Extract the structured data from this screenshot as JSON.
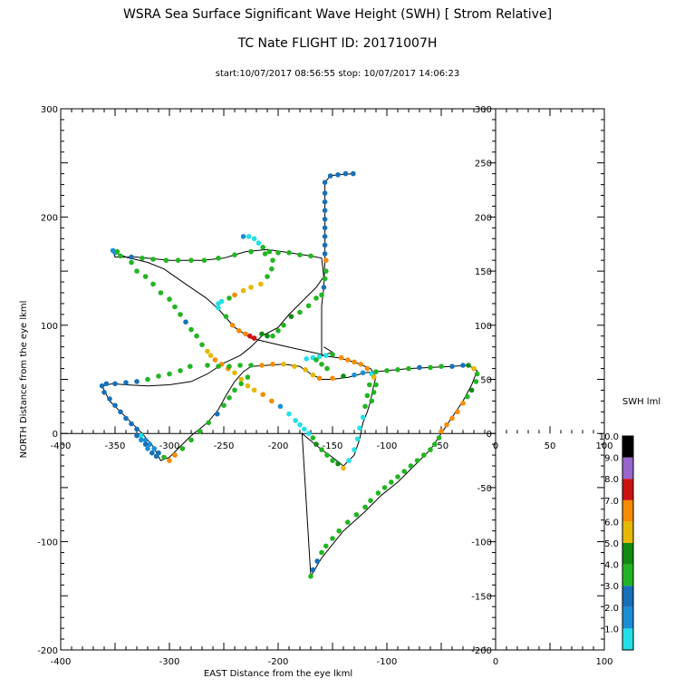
{
  "chart_data": {
    "type": "scatter",
    "title": "WSRA Sea Surface Significant Wave Height (SWH) [ Strom Relative]",
    "subtitle": "TC Nate  FLIGHT ID: 20171007H",
    "time_range": "start:10/07/2017 08:56:55 stop: 10/07/2017 14:06:23",
    "xlabel": "EAST Distance from the eye lkml",
    "ylabel": "NORTH Distance from the eye lkml",
    "xlim": [
      -400,
      100
    ],
    "ylim": [
      -200,
      300
    ],
    "x_ticks": [
      "-400",
      "-300",
      "-200",
      "-100",
      "0",
      "100"
    ],
    "x_ticks_axis": [
      "-400",
      "-350",
      "-300",
      "-250",
      "-200",
      "-150",
      "-100",
      "-50",
      "0",
      "50",
      "100"
    ],
    "y_ticks": [
      "-200",
      "-100",
      "0",
      "100",
      "200",
      "300"
    ],
    "y_ticks_inner": [
      "-200",
      "-150",
      "-100",
      "-50",
      "0",
      "50",
      "100",
      "150",
      "200",
      "250",
      "300"
    ],
    "colorbar": {
      "label": "SWH lml",
      "ticks": [
        "1.0",
        "2.0",
        "3.0",
        "4.0",
        "5.0",
        "6.0",
        "7.0",
        "8.0",
        "9.0",
        "10.0"
      ],
      "segments": [
        {
          "from": 0,
          "to": 1,
          "color": "#22e0e6"
        },
        {
          "from": 1,
          "to": 2,
          "color": "#1a8fd6"
        },
        {
          "from": 2,
          "to": 3,
          "color": "#1670b8"
        },
        {
          "from": 3,
          "to": 4,
          "color": "#22b522"
        },
        {
          "from": 4,
          "to": 5,
          "color": "#128a12"
        },
        {
          "from": 5,
          "to": 6,
          "color": "#e6b800"
        },
        {
          "from": 6,
          "to": 7,
          "color": "#f58c00"
        },
        {
          "from": 7,
          "to": 8,
          "color": "#cc1111"
        },
        {
          "from": 8,
          "to": 9,
          "color": "#9966cc"
        },
        {
          "from": 9,
          "to": 10,
          "color": "#000000"
        }
      ]
    },
    "track": [
      [
        -131,
        240
      ],
      [
        -145,
        239
      ],
      [
        -152,
        238
      ],
      [
        -157,
        232
      ],
      [
        -157,
        210
      ],
      [
        -157,
        185
      ],
      [
        -157,
        162
      ],
      [
        -158,
        135
      ],
      [
        -160,
        118
      ],
      [
        -160,
        102
      ],
      [
        -160,
        80
      ],
      [
        -160,
        73
      ],
      [
        -200,
        82
      ],
      [
        -225,
        88
      ],
      [
        -240,
        98
      ],
      [
        -255,
        115
      ],
      [
        -266,
        125
      ],
      [
        -285,
        138
      ],
      [
        -305,
        152
      ],
      [
        -320,
        158
      ],
      [
        -340,
        163
      ],
      [
        -352,
        168
      ],
      [
        -350,
        163
      ],
      [
        -330,
        163
      ],
      [
        -300,
        160
      ],
      [
        -270,
        160
      ],
      [
        -250,
        162
      ],
      [
        -230,
        168
      ],
      [
        -210,
        170
      ],
      [
        -190,
        167
      ],
      [
        -170,
        164
      ],
      [
        -160,
        162
      ],
      [
        -158,
        145
      ],
      [
        -165,
        135
      ],
      [
        -175,
        125
      ],
      [
        -190,
        110
      ],
      [
        -200,
        98
      ],
      [
        -215,
        90
      ],
      [
        -225,
        80
      ],
      [
        -235,
        72
      ],
      [
        -250,
        65
      ],
      [
        -265,
        55
      ],
      [
        -280,
        48
      ],
      [
        -300,
        45
      ],
      [
        -320,
        44
      ],
      [
        -340,
        45
      ],
      [
        -352,
        46
      ],
      [
        -362,
        44
      ],
      [
        -355,
        30
      ],
      [
        -345,
        20
      ],
      [
        -335,
        10
      ],
      [
        -325,
        0
      ],
      [
        -315,
        -12
      ],
      [
        -308,
        -25
      ],
      [
        -300,
        -22
      ],
      [
        -290,
        -12
      ],
      [
        -280,
        -2
      ],
      [
        -265,
        10
      ],
      [
        -255,
        22
      ],
      [
        -248,
        35
      ],
      [
        -240,
        48
      ],
      [
        -232,
        57
      ],
      [
        -225,
        62
      ],
      [
        -210,
        63
      ],
      [
        -195,
        64
      ],
      [
        -180,
        62
      ],
      [
        -170,
        55
      ],
      [
        -160,
        50
      ],
      [
        -150,
        50
      ],
      [
        -135,
        52
      ],
      [
        -120,
        56
      ],
      [
        -100,
        58
      ],
      [
        -80,
        60
      ],
      [
        -60,
        61
      ],
      [
        -40,
        62
      ],
      [
        -25,
        63
      ],
      [
        -17,
        58
      ],
      [
        -22,
        45
      ],
      [
        -30,
        30
      ],
      [
        -40,
        15
      ],
      [
        -50,
        0
      ],
      [
        -60,
        -15
      ],
      [
        -75,
        -30
      ],
      [
        -90,
        -45
      ],
      [
        -105,
        -57
      ],
      [
        -120,
        -72
      ],
      [
        -140,
        -90
      ],
      [
        -160,
        -115
      ],
      [
        -170,
        -132
      ],
      [
        -178,
        0
      ],
      [
        -172,
        -5
      ],
      [
        -160,
        -15
      ],
      [
        -150,
        -22
      ],
      [
        -140,
        -30
      ],
      [
        -130,
        -20
      ],
      [
        -125,
        -5
      ],
      [
        -122,
        10
      ],
      [
        -118,
        20
      ],
      [
        -115,
        30
      ],
      [
        -112,
        45
      ],
      [
        -110,
        52
      ],
      [
        -115,
        60
      ],
      [
        -130,
        66
      ],
      [
        -145,
        70
      ],
      [
        -160,
        72
      ],
      [
        -150,
        75
      ],
      [
        -158,
        80
      ]
    ],
    "points": [
      [
        -131,
        240,
        2.5
      ],
      [
        -138,
        240,
        2.5
      ],
      [
        -145,
        239,
        2.5
      ],
      [
        -152,
        238,
        2.5
      ],
      [
        -157,
        232,
        2.5
      ],
      [
        -157,
        222,
        2.5
      ],
      [
        -157,
        214,
        2.5
      ],
      [
        -157,
        206,
        2.5
      ],
      [
        -157,
        198,
        2.5
      ],
      [
        -157,
        190,
        2.5
      ],
      [
        -157,
        182,
        2.5
      ],
      [
        -157,
        174,
        2.5
      ],
      [
        -157,
        166,
        2.5
      ],
      [
        -156,
        160,
        6.5
      ],
      [
        -156,
        150,
        3.5
      ],
      [
        -157,
        143,
        3.5
      ],
      [
        -158,
        135,
        2.5
      ],
      [
        -160,
        128,
        3.5
      ],
      [
        -165,
        125,
        3.5
      ],
      [
        -172,
        118,
        3.5
      ],
      [
        -180,
        112,
        3.5
      ],
      [
        -188,
        108,
        4.5
      ],
      [
        -195,
        100,
        3.5
      ],
      [
        -200,
        95,
        3.5
      ],
      [
        -205,
        90,
        3.5
      ],
      [
        -210,
        90,
        4.5
      ],
      [
        -215,
        92,
        4.5
      ],
      [
        -222,
        88,
        7.5
      ],
      [
        -226,
        90,
        7.5
      ],
      [
        -230,
        92,
        6.5
      ],
      [
        -236,
        95,
        6.5
      ],
      [
        -242,
        100,
        6.5
      ],
      [
        -248,
        108,
        3.5
      ],
      [
        -255,
        116,
        0.5
      ],
      [
        -255,
        120,
        0.5
      ],
      [
        -252,
        122,
        0.5
      ],
      [
        -245,
        125,
        3.5
      ],
      [
        -240,
        128,
        6.5
      ],
      [
        -232,
        132,
        5.5
      ],
      [
        -225,
        135,
        5.5
      ],
      [
        -216,
        138,
        5.5
      ],
      [
        -210,
        145,
        3.5
      ],
      [
        -206,
        152,
        3.5
      ],
      [
        -205,
        160,
        3.5
      ],
      [
        -208,
        168,
        3.5
      ],
      [
        -214,
        172,
        3.5
      ],
      [
        -218,
        176,
        0.5
      ],
      [
        -222,
        180,
        0.5
      ],
      [
        -227,
        182,
        0.5
      ],
      [
        -232,
        182,
        1.5
      ],
      [
        -212,
        166,
        3.5
      ],
      [
        -200,
        167,
        3.5
      ],
      [
        -190,
        167,
        3.5
      ],
      [
        -180,
        165,
        3.5
      ],
      [
        -170,
        164,
        3.5
      ],
      [
        -225,
        168,
        3.5
      ],
      [
        -240,
        165,
        3.5
      ],
      [
        -255,
        162,
        3.5
      ],
      [
        -268,
        160,
        3.5
      ],
      [
        -280,
        160,
        3.5
      ],
      [
        -292,
        160,
        3.5
      ],
      [
        -303,
        160,
        3.5
      ],
      [
        -315,
        161,
        3.5
      ],
      [
        -325,
        162,
        3.5
      ],
      [
        -335,
        163,
        2.5
      ],
      [
        -345,
        164,
        3.5
      ],
      [
        -350,
        167,
        1.5
      ],
      [
        -352,
        169,
        1.5
      ],
      [
        -348,
        168,
        3.5
      ],
      [
        -335,
        158,
        3.5
      ],
      [
        -330,
        150,
        3.5
      ],
      [
        -322,
        145,
        3.5
      ],
      [
        -315,
        138,
        3.5
      ],
      [
        -308,
        130,
        3.5
      ],
      [
        -300,
        124,
        3.5
      ],
      [
        -295,
        117,
        3.5
      ],
      [
        -290,
        110,
        3.5
      ],
      [
        -285,
        103,
        2.5
      ],
      [
        -280,
        96,
        3.5
      ],
      [
        -275,
        90,
        3.5
      ],
      [
        -270,
        82,
        3.5
      ],
      [
        -265,
        76,
        5.5
      ],
      [
        -262,
        72,
        5.5
      ],
      [
        -258,
        68,
        6.5
      ],
      [
        -252,
        64,
        6.5
      ],
      [
        -246,
        60,
        6.5
      ],
      [
        -240,
        56,
        5.5
      ],
      [
        -234,
        50,
        5.5
      ],
      [
        -228,
        44,
        5.5
      ],
      [
        -222,
        40,
        5.5
      ],
      [
        -214,
        36,
        6.5
      ],
      [
        -206,
        30,
        6.5
      ],
      [
        -198,
        25,
        1.5
      ],
      [
        -190,
        18,
        0.5
      ],
      [
        -184,
        12,
        0.5
      ],
      [
        -180,
        8,
        0.5
      ],
      [
        -176,
        4,
        0.5
      ],
      [
        -172,
        0,
        0.5
      ],
      [
        -168,
        -4,
        3.5
      ],
      [
        -165,
        -10,
        4.5
      ],
      [
        -160,
        -15,
        3.5
      ],
      [
        -155,
        -20,
        3.5
      ],
      [
        -150,
        -25,
        3.5
      ],
      [
        -145,
        -28,
        4.5
      ],
      [
        -140,
        -32,
        5.5
      ],
      [
        -135,
        -25,
        0.5
      ],
      [
        -130,
        -15,
        0.5
      ],
      [
        -127,
        -5,
        0.5
      ],
      [
        -125,
        5,
        0.5
      ],
      [
        -122,
        15,
        0.5
      ],
      [
        -120,
        25,
        3.5
      ],
      [
        -118,
        35,
        3.5
      ],
      [
        -116,
        45,
        3.5
      ],
      [
        -114,
        55,
        0.5
      ],
      [
        -265,
        63,
        3.5
      ],
      [
        -255,
        62,
        3.5
      ],
      [
        -245,
        62,
        3.5
      ],
      [
        -235,
        63,
        3.5
      ],
      [
        -225,
        63,
        3.5
      ],
      [
        -215,
        63,
        6.5
      ],
      [
        -205,
        64,
        6.5
      ],
      [
        -195,
        64,
        5.5
      ],
      [
        -185,
        62,
        5.5
      ],
      [
        -175,
        59,
        5.5
      ],
      [
        -168,
        54,
        5.5
      ],
      [
        -162,
        51,
        6.5
      ],
      [
        -150,
        51,
        6.5
      ],
      [
        -140,
        53,
        4.5
      ],
      [
        -130,
        54,
        1.5
      ],
      [
        -122,
        56,
        1.5
      ],
      [
        -110,
        57,
        3.5
      ],
      [
        -100,
        58,
        3.5
      ],
      [
        -90,
        59,
        3.5
      ],
      [
        -80,
        60,
        3.5
      ],
      [
        -70,
        61,
        2.5
      ],
      [
        -60,
        61,
        3.5
      ],
      [
        -50,
        62,
        3.5
      ],
      [
        -40,
        62,
        2.5
      ],
      [
        -30,
        63,
        2.5
      ],
      [
        -25,
        63,
        4.5
      ],
      [
        -20,
        60,
        5.5
      ],
      [
        -17,
        55,
        3.5
      ],
      [
        -18,
        48,
        3.5
      ],
      [
        -22,
        40,
        4.5
      ],
      [
        -26,
        34,
        3.5
      ],
      [
        -30,
        28,
        6.5
      ],
      [
        -35,
        20,
        6.5
      ],
      [
        -40,
        14,
        6.5
      ],
      [
        -45,
        8,
        6.5
      ],
      [
        -50,
        2,
        6.5
      ],
      [
        -52,
        -4,
        3.5
      ],
      [
        -56,
        -10,
        3.5
      ],
      [
        -60,
        -15,
        3.5
      ],
      [
        -66,
        -20,
        3.5
      ],
      [
        -72,
        -25,
        3.5
      ],
      [
        -78,
        -30,
        3.5
      ],
      [
        -84,
        -35,
        3.5
      ],
      [
        -90,
        -40,
        3.5
      ],
      [
        -96,
        -45,
        3.5
      ],
      [
        -102,
        -50,
        3.5
      ],
      [
        -108,
        -55,
        3.5
      ],
      [
        -115,
        -62,
        3.5
      ],
      [
        -120,
        -68,
        3.5
      ],
      [
        -128,
        -75,
        3.5
      ],
      [
        -136,
        -82,
        3.5
      ],
      [
        -144,
        -90,
        3.5
      ],
      [
        -150,
        -97,
        3.5
      ],
      [
        -156,
        -104,
        3.5
      ],
      [
        -160,
        -110,
        3.5
      ],
      [
        -164,
        -118,
        2.5
      ],
      [
        -168,
        -126,
        2.5
      ],
      [
        -170,
        -132,
        3.5
      ],
      [
        -281,
        62,
        3.5
      ],
      [
        -290,
        58,
        3.5
      ],
      [
        -300,
        55,
        3.5
      ],
      [
        -310,
        53,
        3.5
      ],
      [
        -320,
        50,
        3.5
      ],
      [
        -330,
        48,
        2.5
      ],
      [
        -340,
        47,
        2.5
      ],
      [
        -350,
        46,
        2.5
      ],
      [
        -358,
        46,
        2.5
      ],
      [
        -362,
        44,
        2.5
      ],
      [
        -360,
        38,
        2.5
      ],
      [
        -355,
        32,
        2.5
      ],
      [
        -350,
        26,
        2.5
      ],
      [
        -345,
        20,
        2.5
      ],
      [
        -340,
        14,
        2.5
      ],
      [
        -335,
        9,
        2.5
      ],
      [
        -330,
        4,
        2.5
      ],
      [
        -326,
        -2,
        0.5
      ],
      [
        -322,
        -6,
        1.5
      ],
      [
        -318,
        -10,
        1.5
      ],
      [
        -314,
        -14,
        1.5
      ],
      [
        -310,
        -18,
        2.5
      ],
      [
        -305,
        -22,
        3.5
      ],
      [
        -300,
        -25,
        6.5
      ],
      [
        -295,
        -20,
        6.5
      ],
      [
        -288,
        -14,
        3.5
      ],
      [
        -280,
        -6,
        3.5
      ],
      [
        -272,
        2,
        3.5
      ],
      [
        -264,
        10,
        3.5
      ],
      [
        -256,
        18,
        2.5
      ],
      [
        -250,
        26,
        3.5
      ],
      [
        -245,
        33,
        3.5
      ],
      [
        -240,
        40,
        3.5
      ],
      [
        -234,
        46,
        3.5
      ],
      [
        -228,
        52,
        3.5
      ],
      [
        -330,
        -2,
        2.5
      ],
      [
        -326,
        -6,
        1.5
      ],
      [
        -322,
        -10,
        2.5
      ],
      [
        -320,
        -14,
        1.5
      ],
      [
        -316,
        -18,
        2.5
      ],
      [
        -312,
        -21,
        2.5
      ],
      [
        -174,
        69,
        0.5
      ],
      [
        -168,
        70,
        0.5
      ],
      [
        -162,
        71,
        0.5
      ],
      [
        -156,
        72,
        0.5
      ],
      [
        -150,
        73,
        3.5
      ],
      [
        -142,
        70,
        6.5
      ],
      [
        -136,
        68,
        6.5
      ],
      [
        -130,
        66,
        6.5
      ],
      [
        -124,
        64,
        6.5
      ],
      [
        -118,
        60,
        6.5
      ],
      [
        -112,
        52,
        5.5
      ],
      [
        -110,
        45,
        3.5
      ],
      [
        -112,
        38,
        3.5
      ],
      [
        -114,
        30,
        3.5
      ],
      [
        -155,
        60,
        3.5
      ],
      [
        -160,
        64,
        3.5
      ],
      [
        -165,
        68,
        3.5
      ]
    ]
  }
}
